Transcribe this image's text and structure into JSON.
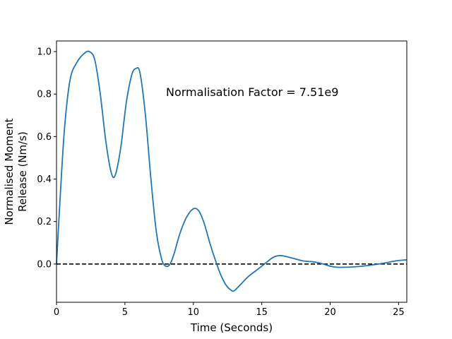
{
  "chart_data": {
    "type": "line",
    "title": "",
    "xlabel": "Time (Seconds)",
    "ylabel_lines": [
      "Normalised Moment",
      "Release (Nm/s)"
    ],
    "xlim": [
      0,
      25.6
    ],
    "ylim": [
      -0.18,
      1.05
    ],
    "xticks": [
      0,
      5,
      10,
      15,
      20,
      25
    ],
    "yticks": [
      0.0,
      0.2,
      0.4,
      0.6,
      0.8,
      1.0
    ],
    "xtick_labels": [
      "0",
      "5",
      "10",
      "15",
      "20",
      "25"
    ],
    "ytick_labels": [
      "0.0",
      "0.2",
      "0.4",
      "0.6",
      "0.8",
      "1.0"
    ],
    "grid": false,
    "annotation": {
      "text": "Normalisation Factor = 7.51e9",
      "x": 8.0,
      "y": 0.81
    },
    "reference_line": {
      "y": 0.0,
      "style": "dashed",
      "color": "#000000"
    },
    "series": [
      {
        "color": "#1f77b4",
        "x": [
          0,
          0.3,
          0.6,
          1.0,
          1.5,
          2.0,
          2.4,
          2.8,
          3.2,
          3.6,
          4.0,
          4.3,
          4.7,
          5.1,
          5.5,
          5.8,
          6.1,
          6.5,
          6.9,
          7.3,
          7.7,
          8.0,
          8.3,
          8.6,
          9.0,
          9.5,
          10.0,
          10.4,
          10.8,
          11.2,
          11.6,
          12.0,
          12.4,
          12.8,
          13.0,
          13.4,
          14.0,
          14.6,
          15.2,
          15.8,
          16.3,
          16.8,
          17.4,
          18.0,
          18.5,
          19.0,
          19.5,
          20.0,
          20.5,
          21.0,
          22.0,
          23.0,
          24.0,
          24.8,
          25.6
        ],
        "y": [
          0.0,
          0.35,
          0.65,
          0.87,
          0.95,
          0.99,
          1.0,
          0.96,
          0.8,
          0.58,
          0.43,
          0.42,
          0.55,
          0.76,
          0.89,
          0.92,
          0.9,
          0.7,
          0.4,
          0.15,
          0.02,
          -0.01,
          0.0,
          0.05,
          0.14,
          0.22,
          0.26,
          0.25,
          0.19,
          0.1,
          0.02,
          -0.05,
          -0.1,
          -0.125,
          -0.125,
          -0.1,
          -0.06,
          -0.03,
          0.0,
          0.03,
          0.04,
          0.035,
          0.025,
          0.015,
          0.012,
          0.008,
          0.0,
          -0.01,
          -0.015,
          -0.015,
          -0.012,
          -0.005,
          0.005,
          0.015,
          0.02
        ]
      }
    ]
  }
}
